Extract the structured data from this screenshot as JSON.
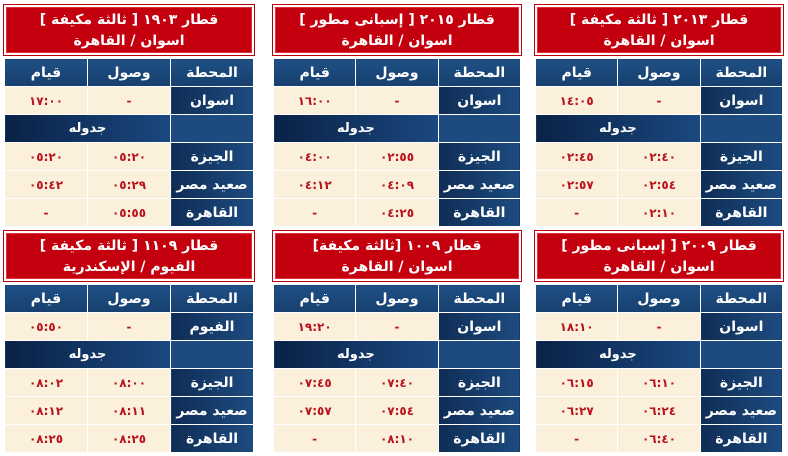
{
  "colors": {
    "header_red": "#c4000f",
    "table_blue": "#1d4b80",
    "cell_cream": "#fbf0dc",
    "time_red": "#b8131c"
  },
  "columns": {
    "station": "المحطة",
    "arrival": "وصول",
    "departure": "قيام"
  },
  "schedule_label": "جدوله",
  "trains": [
    {
      "title": "قطار ٢٠١٣ [ ثالثة مكيفة ]",
      "route": "اسوان / القاهرة",
      "origin": {
        "station": "اسوان",
        "arrival": "-",
        "departure": "١٤:٠٥"
      },
      "stops": [
        {
          "station": "الجيزة",
          "arrival": "٠٢:٤٠",
          "departure": "٠٢:٤٥"
        },
        {
          "station": "صعيد مصر",
          "arrival": "٠٢:٥٤",
          "departure": "٠٢:٥٧"
        },
        {
          "station": "القاهرة",
          "arrival": "٠٢:١٠",
          "departure": "-"
        }
      ]
    },
    {
      "title": "قطار ٢٠١٥ [ إسبانى مطور ]",
      "route": "اسوان / القاهرة",
      "origin": {
        "station": "اسوان",
        "arrival": "-",
        "departure": "١٦:٠٠"
      },
      "stops": [
        {
          "station": "الجيزة",
          "arrival": "٠٢:٥٥",
          "departure": "٠٤:٠٠"
        },
        {
          "station": "صعيد مصر",
          "arrival": "٠٤:٠٩",
          "departure": "٠٤:١٢"
        },
        {
          "station": "القاهرة",
          "arrival": "٠٤:٢٥",
          "departure": "-"
        }
      ]
    },
    {
      "title": "قطار ١٩٠٣ [ ثالثة مكيفة ]",
      "route": "اسوان / القاهرة",
      "origin": {
        "station": "اسوان",
        "arrival": "-",
        "departure": "١٧:٠٠"
      },
      "stops": [
        {
          "station": "الجيزة",
          "arrival": "٠٥:٢٠",
          "departure": "٠٥:٢٠"
        },
        {
          "station": "صعيد مصر",
          "arrival": "٠٥:٢٩",
          "departure": "٠٥:٤٢"
        },
        {
          "station": "القاهرة",
          "arrival": "٠٥:٥٥",
          "departure": "-"
        }
      ]
    },
    {
      "title": "قطار ٢٠٠٩ [ إسبانى مطور ]",
      "route": "اسوان / القاهرة",
      "origin": {
        "station": "اسوان",
        "arrival": "-",
        "departure": "١٨:١٠"
      },
      "stops": [
        {
          "station": "الجيزة",
          "arrival": "٠٦:١٠",
          "departure": "٠٦:١٥"
        },
        {
          "station": "صعيد مصر",
          "arrival": "٠٦:٢٤",
          "departure": "٠٦:٢٧"
        },
        {
          "station": "القاهرة",
          "arrival": "٠٦:٤٠",
          "departure": "-"
        }
      ]
    },
    {
      "title": "قطار ١٠٠٩ [ثالثة مكيفة]",
      "route": "اسوان / القاهرة",
      "origin": {
        "station": "اسوان",
        "arrival": "-",
        "departure": "١٩:٢٠"
      },
      "stops": [
        {
          "station": "الجيزة",
          "arrival": "٠٧:٤٠",
          "departure": "٠٧:٤٥"
        },
        {
          "station": "صعيد مصر",
          "arrival": "٠٧:٥٤",
          "departure": "٠٧:٥٧"
        },
        {
          "station": "القاهرة",
          "arrival": "٠٨:١٠",
          "departure": "-"
        }
      ]
    },
    {
      "title": "قطار ١١٠٩ [ ثالثة مكيفة ]",
      "route": "الفيوم / الإسكندرية",
      "origin": {
        "station": "الفيوم",
        "arrival": "-",
        "departure": "٠٥:٥٠"
      },
      "stops": [
        {
          "station": "الجيزة",
          "arrival": "٠٨:٠٠",
          "departure": "٠٨:٠٢"
        },
        {
          "station": "صعيد مصر",
          "arrival": "٠٨:١١",
          "departure": "٠٨:١٢"
        },
        {
          "station": "القاهرة",
          "arrival": "٠٨:٢٥",
          "departure": "٠٨:٢٥"
        }
      ]
    }
  ]
}
